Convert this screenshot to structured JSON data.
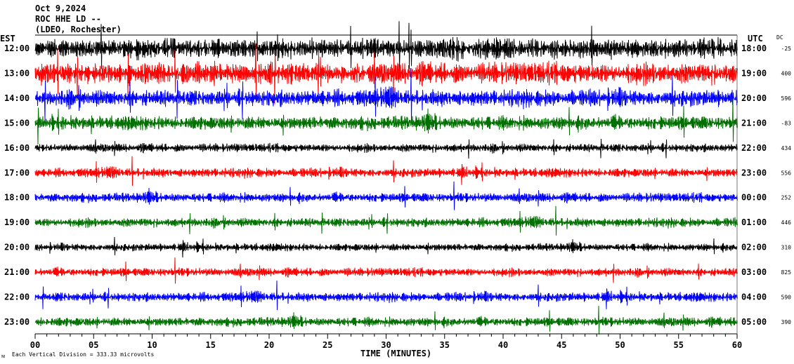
{
  "header": {
    "date": "Oct 9,2024",
    "station": "ROC HHE LD --",
    "network": "(LDEO, Rochester)"
  },
  "left_axis_label": "EST",
  "right_axis_label": "UTC",
  "dc_label": "DC",
  "footer": {
    "scale_note": "Each Vertical Division =  333.33 microvolts",
    "xlabel": "TIME (MINUTES)"
  },
  "chart_data": {
    "type": "line",
    "title": "ROC HHE LD --",
    "xlabel": "TIME (MINUTES)",
    "xlim": [
      0,
      60
    ],
    "x_ticks": [
      "00",
      "05",
      "10",
      "15",
      "20",
      "25",
      "30",
      "35",
      "40",
      "45",
      "50",
      "55",
      "60"
    ],
    "grid": false,
    "trace_colors": [
      "#000000",
      "#ff0000",
      "#0000ff",
      "#007000"
    ],
    "rows": [
      {
        "est": "12:00",
        "utc": "18:00",
        "dc": "-25",
        "color": "#000000",
        "amplitude": 1.3
      },
      {
        "est": "13:00",
        "utc": "19:00",
        "dc": "400",
        "color": "#ff0000",
        "amplitude": 1.4
      },
      {
        "est": "14:00",
        "utc": "20:00",
        "dc": "596",
        "color": "#0000ff",
        "amplitude": 1.1
      },
      {
        "est": "15:00",
        "utc": "21:00",
        "dc": "-83",
        "color": "#007000",
        "amplitude": 0.9
      },
      {
        "est": "16:00",
        "utc": "22:00",
        "dc": "434",
        "color": "#000000",
        "amplitude": 0.55
      },
      {
        "est": "17:00",
        "utc": "23:00",
        "dc": "556",
        "color": "#ff0000",
        "amplitude": 0.6
      },
      {
        "est": "18:00",
        "utc": "00:00",
        "dc": "252",
        "color": "#0000ff",
        "amplitude": 0.6
      },
      {
        "est": "19:00",
        "utc": "01:00",
        "dc": "446",
        "color": "#007000",
        "amplitude": 0.6
      },
      {
        "est": "20:00",
        "utc": "02:00",
        "dc": "310",
        "color": "#000000",
        "amplitude": 0.5
      },
      {
        "est": "21:00",
        "utc": "03:00",
        "dc": "825",
        "color": "#ff0000",
        "amplitude": 0.55
      },
      {
        "est": "22:00",
        "utc": "04:00",
        "dc": "590",
        "color": "#0000ff",
        "amplitude": 0.6
      },
      {
        "est": "23:00",
        "utc": "05:00",
        "dc": "390",
        "color": "#007000",
        "amplitude": 0.6
      }
    ]
  }
}
